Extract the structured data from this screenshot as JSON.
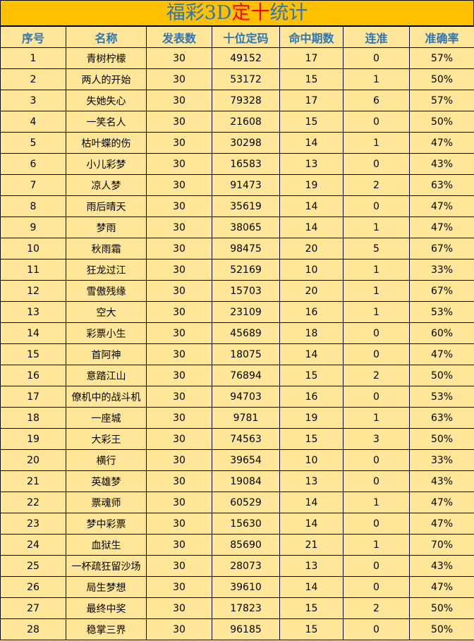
{
  "title": {
    "part1": "福彩3D",
    "part2": "定十",
    "part3": "统计"
  },
  "colors": {
    "title_bg": "#FFC000",
    "cell_bg": "#FFE699",
    "header_text": "#2E75B6",
    "highlight": "#FF0000"
  },
  "headers": [
    "序号",
    "名称",
    "发表数",
    "十位定码",
    "命中期数",
    "连准",
    "准确率"
  ],
  "rows": [
    [
      "1",
      "青树柠檬",
      "30",
      "49152",
      "17",
      "0",
      "57%"
    ],
    [
      "2",
      "两人的开始",
      "30",
      "53172",
      "15",
      "1",
      "50%"
    ],
    [
      "3",
      "失她失心",
      "30",
      "79328",
      "17",
      "6",
      "57%"
    ],
    [
      "4",
      "一笑名人",
      "30",
      "21608",
      "15",
      "0",
      "50%"
    ],
    [
      "5",
      "枯叶蝶的伤",
      "30",
      "30298",
      "14",
      "1",
      "47%"
    ],
    [
      "6",
      "小儿彩梦",
      "30",
      "16583",
      "13",
      "0",
      "43%"
    ],
    [
      "7",
      "凉人梦",
      "30",
      "91473",
      "19",
      "2",
      "63%"
    ],
    [
      "8",
      "雨后晴天",
      "30",
      "35619",
      "14",
      "0",
      "47%"
    ],
    [
      "9",
      "梦雨",
      "30",
      "38065",
      "14",
      "1",
      "47%"
    ],
    [
      "10",
      "秋雨霜",
      "30",
      "98475",
      "20",
      "5",
      "67%"
    ],
    [
      "11",
      "狂龙过江",
      "30",
      "52169",
      "10",
      "1",
      "33%"
    ],
    [
      "12",
      "雪傲残缘",
      "30",
      "15703",
      "20",
      "1",
      "67%"
    ],
    [
      "13",
      "空大",
      "30",
      "23109",
      "16",
      "1",
      "53%"
    ],
    [
      "14",
      "彩票小生",
      "30",
      "45689",
      "18",
      "0",
      "60%"
    ],
    [
      "15",
      "首阿神",
      "30",
      "18075",
      "14",
      "0",
      "47%"
    ],
    [
      "16",
      "意踏江山",
      "30",
      "76894",
      "15",
      "2",
      "50%"
    ],
    [
      "17",
      "僚机中的战斗机",
      "30",
      "94703",
      "16",
      "0",
      "53%"
    ],
    [
      "18",
      "一座城",
      "30",
      "9781",
      "19",
      "1",
      "63%"
    ],
    [
      "19",
      "大彩王",
      "30",
      "74563",
      "15",
      "3",
      "50%"
    ],
    [
      "20",
      "横行",
      "30",
      "39654",
      "10",
      "0",
      "33%"
    ],
    [
      "21",
      "英雄梦",
      "30",
      "19084",
      "13",
      "0",
      "43%"
    ],
    [
      "22",
      "票魂师",
      "30",
      "60529",
      "14",
      "1",
      "47%"
    ],
    [
      "23",
      "梦中彩票",
      "30",
      "15630",
      "14",
      "0",
      "47%"
    ],
    [
      "24",
      "血狱生",
      "30",
      "85690",
      "21",
      "1",
      "70%"
    ],
    [
      "25",
      "一杯疏狂留沙场",
      "30",
      "28073",
      "13",
      "0",
      "43%"
    ],
    [
      "26",
      "局生梦想",
      "30",
      "39610",
      "14",
      "0",
      "47%"
    ],
    [
      "27",
      "最终中奖",
      "30",
      "17823",
      "15",
      "2",
      "50%"
    ],
    [
      "28",
      "稳掌三界",
      "30",
      "96185",
      "15",
      "0",
      "50%"
    ]
  ]
}
